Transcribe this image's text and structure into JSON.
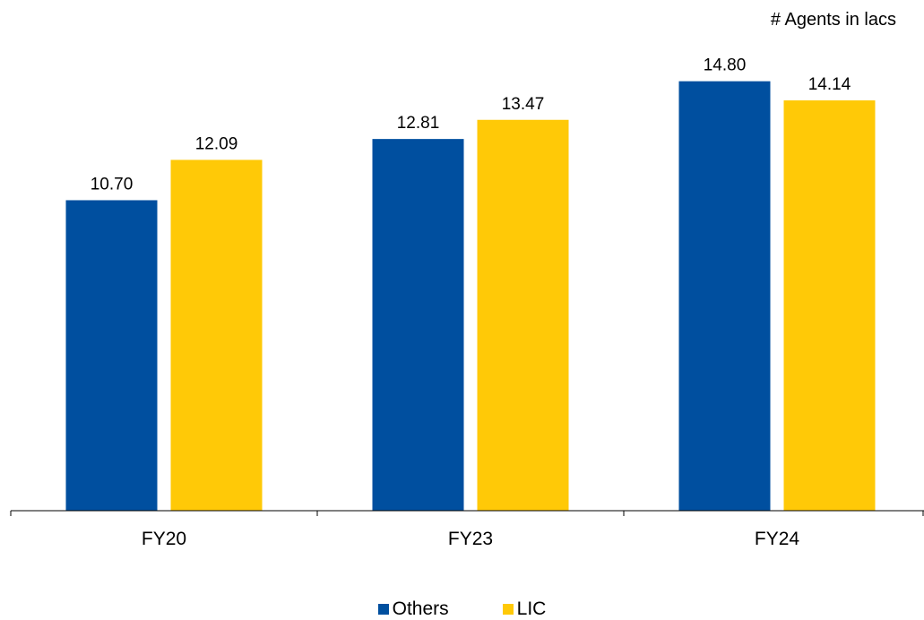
{
  "chart_data": {
    "type": "bar",
    "title": "",
    "unit_label": "# Agents in lacs",
    "categories": [
      "FY20",
      "FY23",
      "FY24"
    ],
    "series": [
      {
        "name": "Others",
        "values": [
          10.7,
          12.81,
          14.8
        ],
        "labels": [
          "10.70",
          "12.81",
          "14.80"
        ],
        "color": "#004f9f"
      },
      {
        "name": "LIC",
        "values": [
          12.09,
          13.47,
          14.14
        ],
        "labels": [
          "12.09",
          "13.47",
          "14.14"
        ],
        "color": "#ffc907"
      }
    ],
    "ylim": [
      0,
      17.6
    ],
    "grid": false,
    "legend_position": "bottom"
  }
}
